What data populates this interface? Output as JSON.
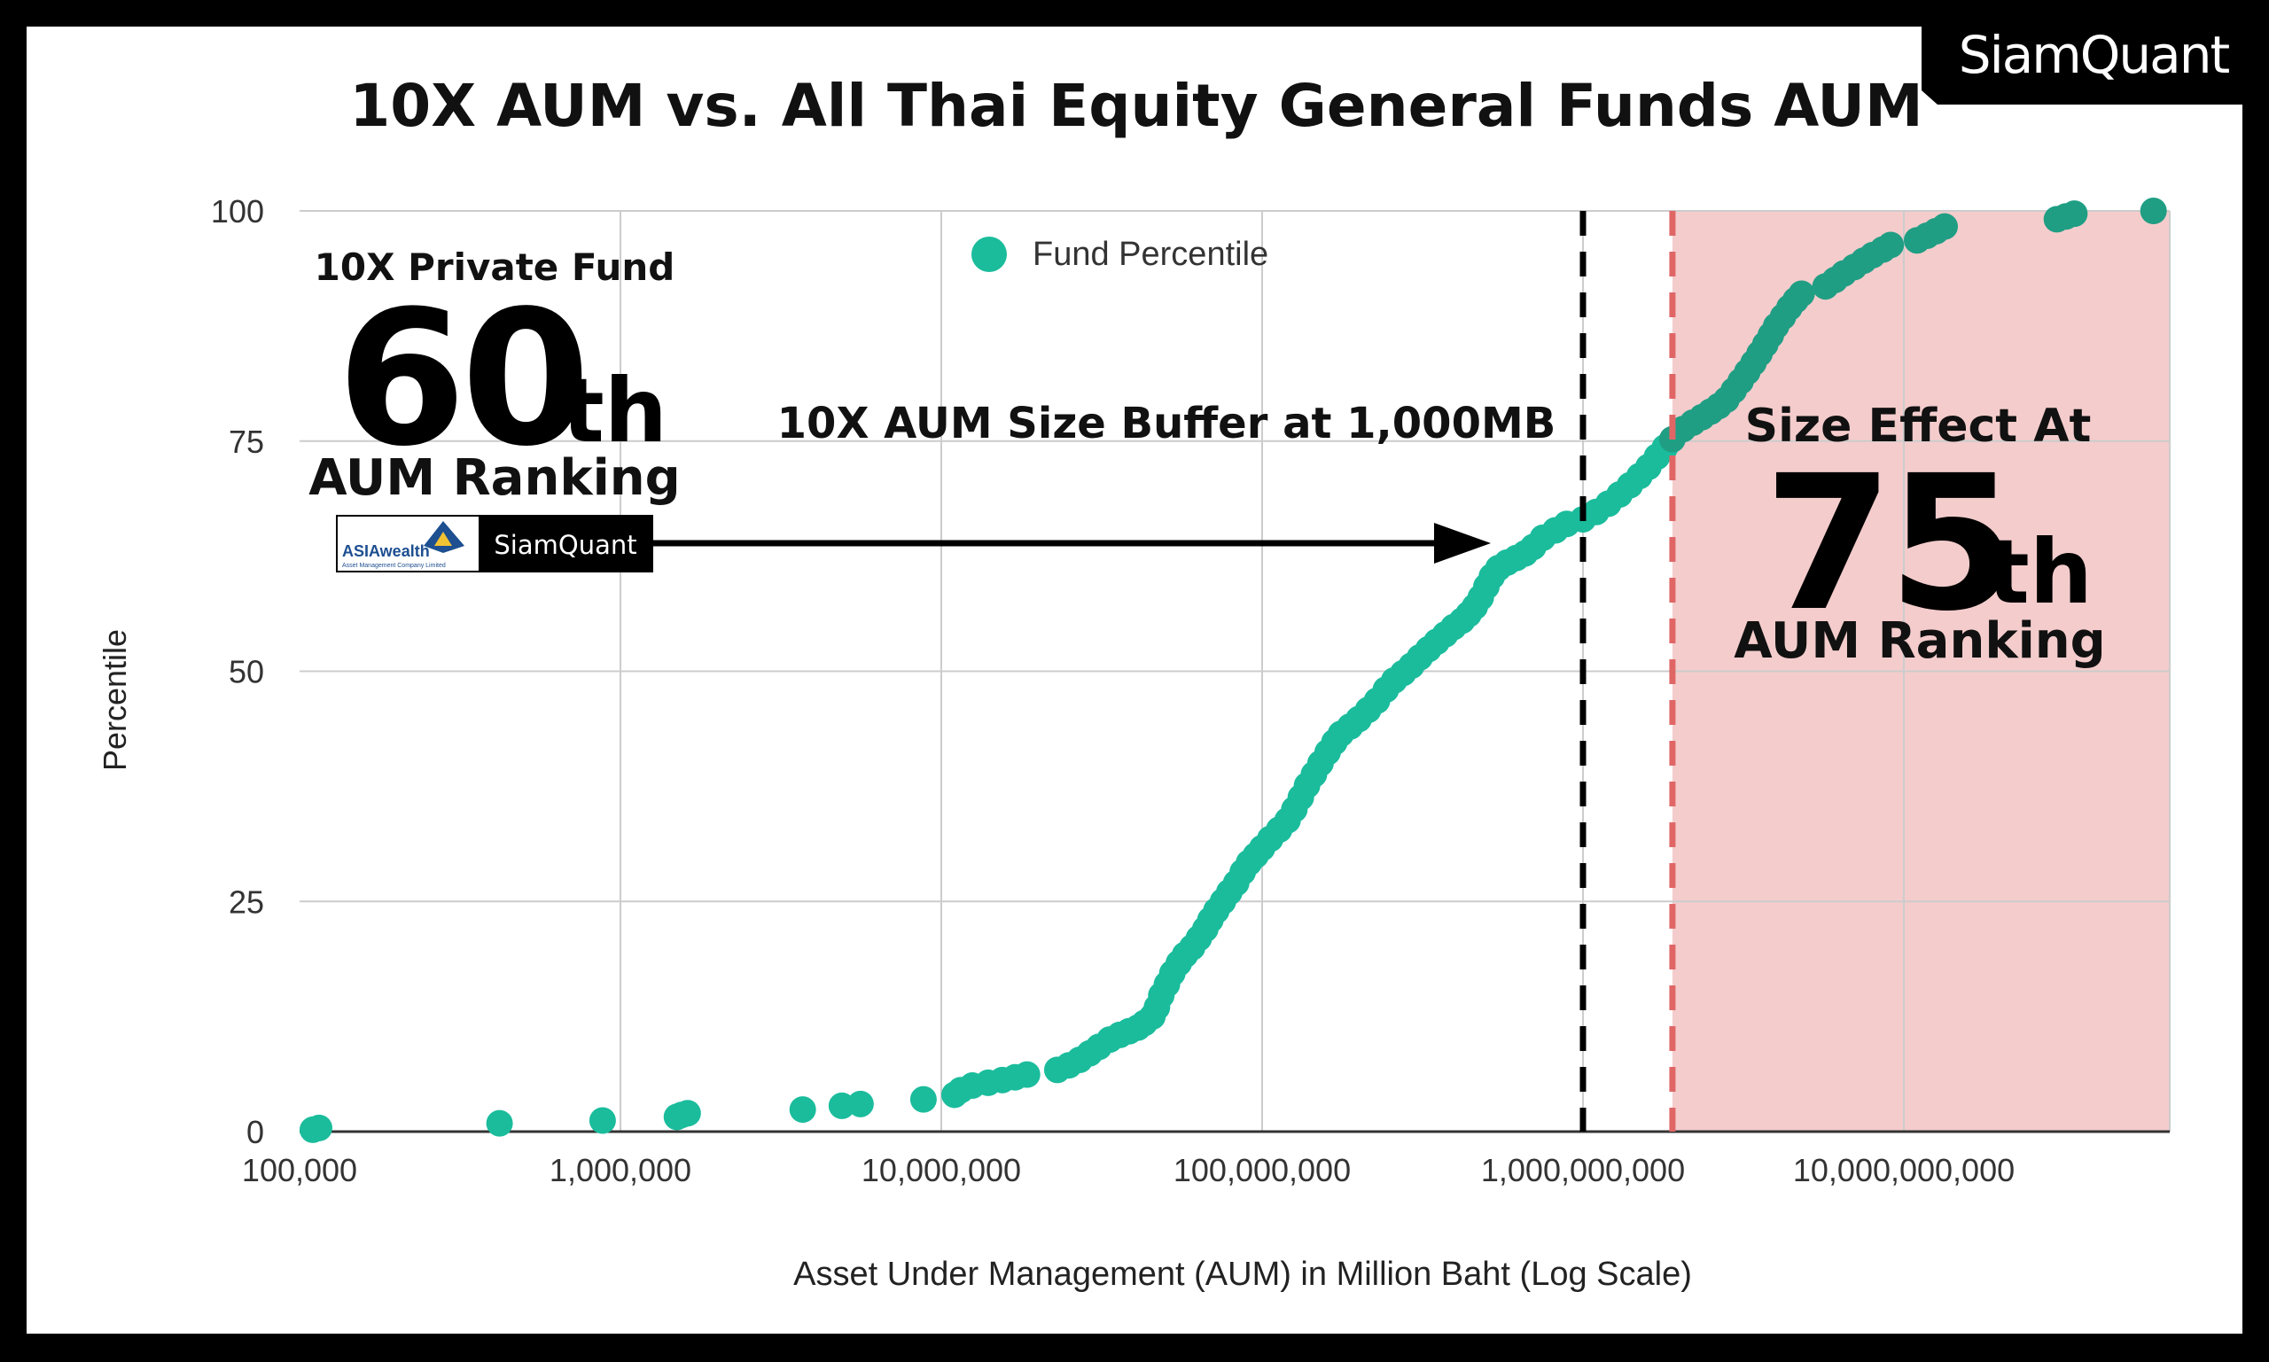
{
  "brand": {
    "logo_text": "SiamQuant"
  },
  "chart_data": {
    "type": "scatter",
    "title": "10X AUM vs. All Thai Equity General Funds AUM",
    "xlabel": "Asset Under Management (AUM) in Million Baht (Log Scale)",
    "ylabel": "Percentile",
    "x_scale": "log",
    "xlim": [
      100000,
      70000000000
    ],
    "ylim": [
      0,
      100
    ],
    "x_ticks": [
      {
        "value": 100000,
        "label": "100,000"
      },
      {
        "value": 1000000,
        "label": "1,000,000"
      },
      {
        "value": 10000000,
        "label": "10,000,000"
      },
      {
        "value": 100000000,
        "label": "100,000,000"
      },
      {
        "value": 1000000000,
        "label": "1,000,000,000"
      },
      {
        "value": 10000000000,
        "label": "10,000,000,000"
      }
    ],
    "y_ticks": [
      {
        "value": 0,
        "label": "0"
      },
      {
        "value": 25,
        "label": "25"
      },
      {
        "value": 50,
        "label": "50"
      },
      {
        "value": 75,
        "label": "75"
      },
      {
        "value": 100,
        "label": "100"
      }
    ],
    "grid": true,
    "legend": {
      "position": "top-center",
      "entries": [
        "Fund Percentile"
      ]
    },
    "series": [
      {
        "name": "Fund Percentile",
        "color": "#1abc9c",
        "dark_color": "#1f9e84",
        "points": [
          [
            110000,
            0.2
          ],
          [
            115000,
            0.4
          ],
          [
            420000,
            0.9
          ],
          [
            880000,
            1.2
          ],
          [
            1500000,
            1.6
          ],
          [
            1550000,
            1.8
          ],
          [
            1620000,
            2.0
          ],
          [
            3700000,
            2.4
          ],
          [
            4900000,
            2.8
          ],
          [
            5600000,
            3.0
          ],
          [
            8800000,
            3.5
          ],
          [
            11000000,
            4.0
          ],
          [
            11500000,
            4.5
          ],
          [
            12500000,
            5.0
          ],
          [
            14000000,
            5.3
          ],
          [
            15500000,
            5.6
          ],
          [
            17000000,
            5.9
          ],
          [
            18500000,
            6.2
          ],
          [
            23000000,
            6.7
          ],
          [
            25000000,
            7.2
          ],
          [
            27000000,
            7.8
          ],
          [
            29000000,
            8.5
          ],
          [
            31000000,
            9.2
          ],
          [
            33500000,
            10.0
          ],
          [
            36000000,
            10.5
          ],
          [
            38500000,
            10.9
          ],
          [
            41000000,
            11.3
          ],
          [
            43000000,
            11.8
          ],
          [
            45500000,
            12.5
          ],
          [
            47000000,
            13.5
          ],
          [
            48500000,
            14.8
          ],
          [
            50500000,
            16.0
          ],
          [
            52500000,
            17.2
          ],
          [
            55000000,
            18.3
          ],
          [
            57500000,
            19.2
          ],
          [
            60500000,
            20.0
          ],
          [
            63500000,
            21.0
          ],
          [
            66500000,
            22.0
          ],
          [
            69000000,
            23.0
          ],
          [
            72000000,
            24.0
          ],
          [
            75500000,
            25.0
          ],
          [
            79000000,
            26.0
          ],
          [
            83000000,
            27.0
          ],
          [
            87000000,
            28.2
          ],
          [
            91000000,
            29.2
          ],
          [
            95500000,
            30.0
          ],
          [
            100000000,
            30.8
          ],
          [
            106000000,
            31.8
          ],
          [
            113000000,
            32.8
          ],
          [
            120000000,
            33.8
          ],
          [
            126000000,
            35.0
          ],
          [
            132000000,
            36.3
          ],
          [
            138000000,
            37.6
          ],
          [
            145000000,
            38.8
          ],
          [
            152000000,
            40.0
          ],
          [
            160000000,
            41.2
          ],
          [
            168000000,
            42.3
          ],
          [
            176000000,
            43.2
          ],
          [
            188000000,
            44.0
          ],
          [
            200000000,
            44.8
          ],
          [
            214000000,
            45.8
          ],
          [
            228000000,
            46.8
          ],
          [
            243000000,
            48.0
          ],
          [
            258000000,
            49.0
          ],
          [
            275000000,
            49.8
          ],
          [
            292000000,
            50.6
          ],
          [
            310000000,
            51.5
          ],
          [
            330000000,
            52.4
          ],
          [
            350000000,
            53.2
          ],
          [
            372000000,
            54.0
          ],
          [
            395000000,
            54.8
          ],
          [
            420000000,
            55.5
          ],
          [
            440000000,
            56.2
          ],
          [
            460000000,
            57.0
          ],
          [
            480000000,
            58.0
          ],
          [
            500000000,
            59.2
          ],
          [
            520000000,
            60.3
          ],
          [
            545000000,
            61.2
          ],
          [
            580000000,
            61.8
          ],
          [
            620000000,
            62.3
          ],
          [
            660000000,
            62.8
          ],
          [
            700000000,
            63.5
          ],
          [
            750000000,
            64.5
          ],
          [
            820000000,
            65.3
          ],
          [
            890000000,
            66.0
          ],
          [
            1000000000,
            66.5
          ],
          [
            1100000000,
            67.3
          ],
          [
            1200000000,
            68.2
          ],
          [
            1300000000,
            69.2
          ],
          [
            1400000000,
            70.2
          ],
          [
            1500000000,
            71.2
          ],
          [
            1600000000,
            72.2
          ],
          [
            1700000000,
            73.3
          ],
          [
            1800000000,
            74.3
          ],
          [
            1900000000,
            75.2
          ],
          [
            2050000000,
            76.3
          ],
          [
            2200000000,
            77.0
          ],
          [
            2350000000,
            77.6
          ],
          [
            2500000000,
            78.2
          ],
          [
            2650000000,
            78.8
          ],
          [
            2800000000,
            79.5
          ],
          [
            2950000000,
            80.5
          ],
          [
            3100000000,
            81.5
          ],
          [
            3250000000,
            82.5
          ],
          [
            3400000000,
            83.5
          ],
          [
            3550000000,
            84.5
          ],
          [
            3700000000,
            85.5
          ],
          [
            3850000000,
            86.5
          ],
          [
            4000000000,
            87.5
          ],
          [
            4200000000,
            88.5
          ],
          [
            4400000000,
            89.5
          ],
          [
            4600000000,
            90.3
          ],
          [
            4800000000,
            91.0
          ],
          [
            5700000000,
            91.8
          ],
          [
            6100000000,
            92.5
          ],
          [
            6500000000,
            93.2
          ],
          [
            7000000000,
            93.9
          ],
          [
            7500000000,
            94.6
          ],
          [
            8000000000,
            95.2
          ],
          [
            8600000000,
            95.8
          ],
          [
            9100000000,
            96.3
          ],
          [
            11000000000,
            96.8
          ],
          [
            11800000000,
            97.3
          ],
          [
            12600000000,
            97.8
          ],
          [
            13400000000,
            98.3
          ],
          [
            30000000000,
            99.1
          ],
          [
            32000000000,
            99.4
          ],
          [
            34000000000,
            99.7
          ],
          [
            60000000000,
            100.0
          ]
        ]
      }
    ],
    "reference_lines": [
      {
        "x": 1000000000,
        "style": "dashed",
        "color": "#000000"
      },
      {
        "x": 1900000000,
        "style": "dashed",
        "color": "#e06666"
      }
    ],
    "shaded_region": {
      "x_from": 1900000000,
      "x_to": 70000000000,
      "color": "#f4cccc"
    },
    "annotations": {
      "left_box": {
        "line1": "10X Private Fund",
        "big_number": "60",
        "suffix": "th",
        "line3": "AUM Ranking"
      },
      "buffer_label": "10X AUM Size Buffer at 1,000MB",
      "right_box": {
        "line1": "Size Effect At",
        "big_number": "75",
        "suffix": "th",
        "line3": "AUM Ranking"
      },
      "badge": {
        "left_logo_text": "ASIAwealth",
        "left_logo_subtext": "Asset Management Company Limited",
        "right_text": "SiamQuant"
      }
    }
  }
}
